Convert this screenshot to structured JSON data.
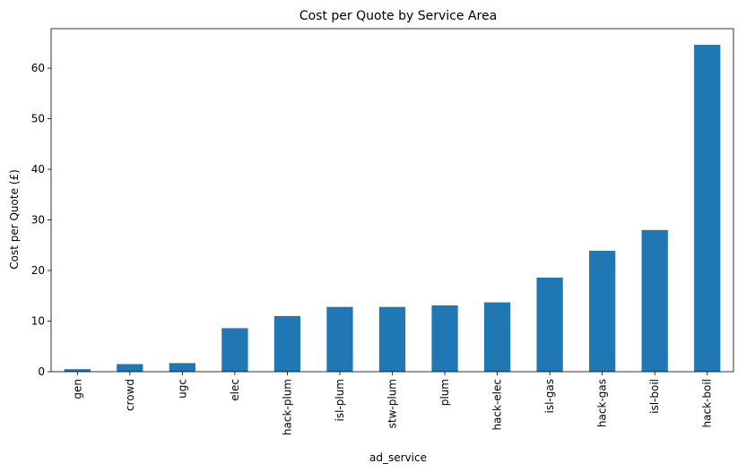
{
  "chart_data": {
    "type": "bar",
    "title": "Cost per Quote by Service Area",
    "xlabel": "ad_service",
    "ylabel": "Cost per Quote (£)",
    "categories": [
      "gen",
      "crowd",
      "ugc",
      "elec",
      "hack-plum",
      "isl-plum",
      "stw-plum",
      "plum",
      "hack-elec",
      "isl-gas",
      "hack-gas",
      "isl-boil",
      "hack-boil"
    ],
    "values": [
      0.5,
      1.5,
      1.7,
      8.6,
      11.0,
      12.8,
      12.8,
      13.1,
      13.7,
      18.6,
      23.9,
      28.0,
      64.6
    ],
    "ylim": [
      0,
      67.8
    ],
    "yticks": [
      0,
      10,
      20,
      30,
      40,
      50,
      60
    ],
    "bar_color": "#1f77b4",
    "grid": false,
    "legend": "none"
  }
}
